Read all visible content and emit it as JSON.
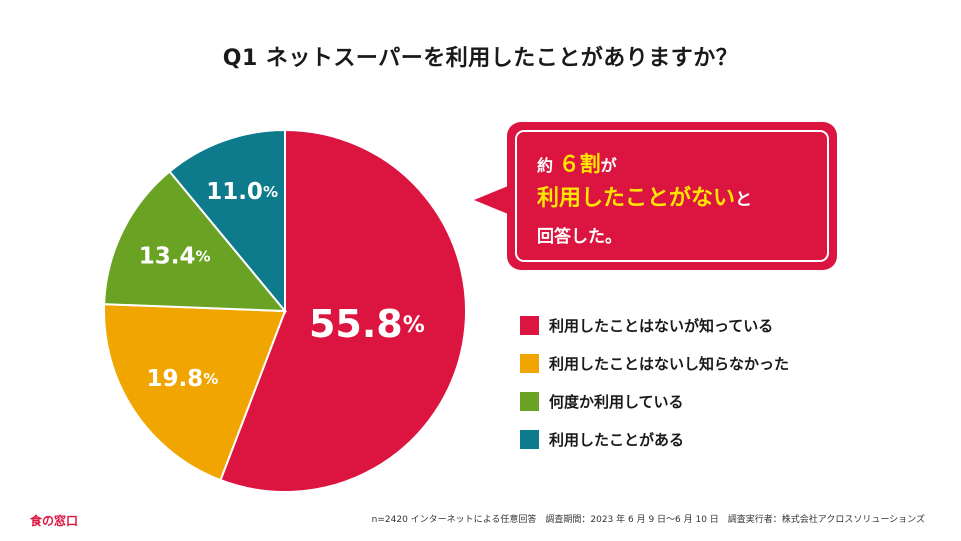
{
  "title": "Q1 ネットスーパーを利用したことがありますか？",
  "chart_data": {
    "type": "pie",
    "title": "Q1 ネットスーパーを利用したことがありますか？",
    "slices": [
      {
        "label": "利用したことはないが知っている",
        "value": 55.8,
        "color": "#dc1440"
      },
      {
        "label": "利用したことはないし知らなかった",
        "value": 19.8,
        "color": "#f0a500"
      },
      {
        "label": "何度か利用している",
        "value": 13.4,
        "color": "#6aa324"
      },
      {
        "label": "利用したことがある",
        "value": 11.0,
        "color": "#0e7b8c"
      }
    ],
    "start": "top",
    "direction": "clockwise",
    "unit": "%"
  },
  "callout": {
    "line1_prefix": "約",
    "line1_highlight": "６割",
    "line1_suffix": "が",
    "line2_highlight": "利用したことがない",
    "line2_suffix": "と",
    "line3": "回答した。"
  },
  "footer": {
    "logo": "食の窓口",
    "note": "n=2420 インターネットによる任意回答　調査期間：2023 年 6 月 9 日〜6 月 10 日　調査実行者：株式会社アクロスソリューションズ"
  }
}
